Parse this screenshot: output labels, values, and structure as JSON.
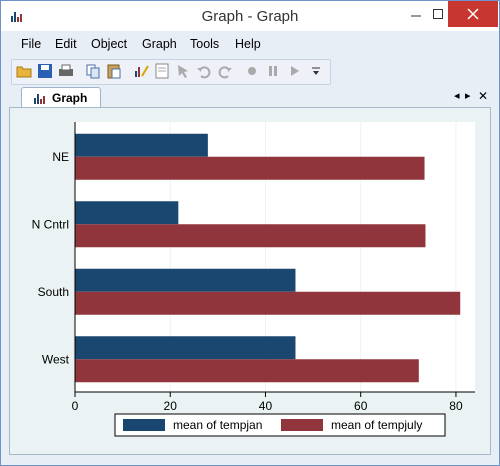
{
  "window": {
    "title": "Graph - Graph",
    "app_icon": "bar-chart-icon",
    "controls": [
      "minimize-icon",
      "maximize-icon",
      "close-icon"
    ]
  },
  "menu": {
    "items": [
      "File",
      "Edit",
      "Object",
      "Graph",
      "Tools",
      "Help"
    ]
  },
  "toolbar": {
    "icons": [
      "open-folder-icon",
      "save-icon",
      "print-icon",
      "copy-icon",
      "paste-icon",
      "graph-editor-icon",
      "properties-icon",
      "pointer-icon",
      "undo-icon",
      "redo-icon",
      "record-icon",
      "pause-icon",
      "play-icon",
      "dropdown-icon"
    ]
  },
  "tab": {
    "label": "Graph",
    "icon": "bar-chart-icon"
  },
  "colors": {
    "series1": "#1a476f",
    "series2": "#90353b",
    "plot_bg": "#ffffff",
    "graph_bg": "#eaf2f3"
  },
  "chart_data": {
    "type": "bar",
    "orientation": "horizontal",
    "categories": [
      "NE",
      "N Cntrl",
      "South",
      "West"
    ],
    "series": [
      {
        "name": "mean of tempjan",
        "values": [
          27.9,
          21.7,
          46.3,
          46.3
        ]
      },
      {
        "name": "mean of tempjuly",
        "values": [
          73.4,
          73.6,
          80.9,
          72.2
        ]
      }
    ],
    "xlim": [
      0,
      84
    ],
    "xticks": [
      0,
      20,
      40,
      60,
      80
    ],
    "grid": true,
    "legend_position": "bottom"
  }
}
